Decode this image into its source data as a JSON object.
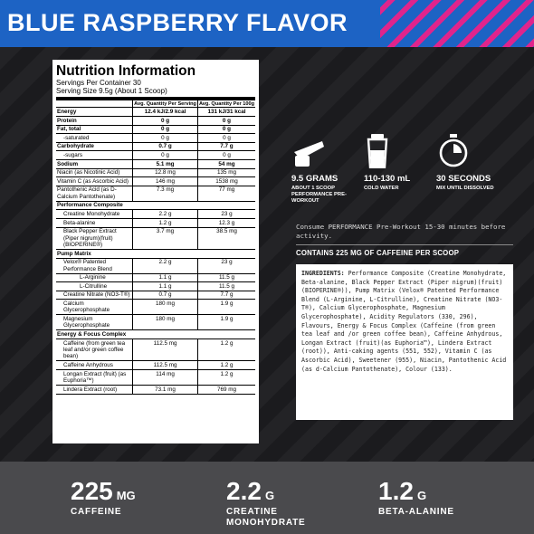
{
  "header": {
    "title": "BLUE RASPBERRY FLAVOR"
  },
  "nutrition": {
    "title": "Nutrition Information",
    "servings_per_container": "Servings Per Container 30",
    "serving_size": "Serving Size 9.5g (About 1 Scoop)",
    "col_serving": "Avg. Quantity Per Serving",
    "col_100g": "Avg. Quantity Per 100g",
    "rows": [
      {
        "name": "Energy",
        "serving": "12.4 kJ/2.9 kcal",
        "per100": "131 kJ/31 kcal",
        "style": "b"
      },
      {
        "name": "Protein",
        "serving": "0 g",
        "per100": "0 g",
        "style": "b"
      },
      {
        "name": "Fat, total",
        "serving": "0 g",
        "per100": "0 g",
        "style": "b"
      },
      {
        "name": "-saturated",
        "serving": "0 g",
        "per100": "0 g",
        "style": "ind1"
      },
      {
        "name": "Carbohydrate",
        "serving": "0.7 g",
        "per100": "7.7 g",
        "style": "b"
      },
      {
        "name": "-sugars",
        "serving": "0 g",
        "per100": "0 g",
        "style": "ind1"
      },
      {
        "name": "Sodium",
        "serving": "5.1 mg",
        "per100": "54 mg",
        "style": "b"
      },
      {
        "name": "Niacin (as Nicotinic Acid)",
        "serving": "12.8 mg",
        "per100": "135 mg",
        "style": ""
      },
      {
        "name": "Vitamin C (as Ascorbic Acid)",
        "serving": "146 mg",
        "per100": "1538 mg",
        "style": ""
      },
      {
        "name": "Pantothenic Acid (as D-Calcium Pantothenate)",
        "serving": "7.3 mg",
        "per100": "77 mg",
        "style": ""
      },
      {
        "name": "Performance Composite",
        "serving": "",
        "per100": "",
        "style": "sec"
      },
      {
        "name": "Creatine Monohydrate",
        "serving": "2.2 g",
        "per100": "23 g",
        "style": "ind1"
      },
      {
        "name": "Beta-alanine",
        "serving": "1.2 g",
        "per100": "12.3 g",
        "style": "ind1"
      },
      {
        "name": "Black Pepper Extract (Piper nigrum)(fruit)(BIOPERINE®)",
        "serving": "3.7 mg",
        "per100": "38.5 mg",
        "style": "ind1"
      },
      {
        "name": "Pump Matrix",
        "serving": "",
        "per100": "",
        "style": "sec"
      },
      {
        "name": "Velox® Patented Performance Blend",
        "serving": "2.2 g",
        "per100": "23 g",
        "style": "ind1"
      },
      {
        "name": "L-Arginine",
        "serving": "1.1 g",
        "per100": "11.5 g",
        "style": "ind2"
      },
      {
        "name": "L-Citrulline",
        "serving": "1.1 g",
        "per100": "11.5 g",
        "style": "ind2"
      },
      {
        "name": "Creatine Nitrate (NO3-T®)",
        "serving": "0.7 g",
        "per100": "7.7 g",
        "style": "ind1"
      },
      {
        "name": "Calcium Glycerophosphate",
        "serving": "180 mg",
        "per100": "1.9 g",
        "style": "ind1"
      },
      {
        "name": "Magnesium Glycerophosphate",
        "serving": "180 mg",
        "per100": "1.9 g",
        "style": "ind1"
      },
      {
        "name": "Energy & Focus Complex",
        "serving": "",
        "per100": "",
        "style": "sec"
      },
      {
        "name": "Caffeine (from green tea leaf and/or green coffee bean)",
        "serving": "112.5 mg",
        "per100": "1.2 g",
        "style": "ind1"
      },
      {
        "name": "Caffeine Anhydrous",
        "serving": "112.5 mg",
        "per100": "1.2 g",
        "style": "ind1"
      },
      {
        "name": "Longan Extract (fruit) (as Euphoria™)",
        "serving": "114 mg",
        "per100": "1.2 g",
        "style": "ind1"
      },
      {
        "name": "Lindera Extract (root)",
        "serving": "73.1 mg",
        "per100": "769 mg",
        "style": "ind1"
      }
    ]
  },
  "directions": [
    {
      "icon": "scoop-icon",
      "value": "9.5 GRAMS",
      "sub": "ABOUT 1 SCOOP PERFORMANCE PRE-WORKOUT"
    },
    {
      "icon": "shaker-icon",
      "value": "110-130 mL",
      "sub": "COLD WATER"
    },
    {
      "icon": "timer-icon",
      "value": "30 SECONDS",
      "sub": "MIX UNTIL DISSOLVED"
    }
  ],
  "consume": "Consume PERFORMANCE Pre-Workout 15-30 minutes before activity.",
  "caffeine_note": "CONTAINS 225 MG OF CAFFEINE PER SCOOP",
  "ingredients": {
    "label": "INGREDIENTS:",
    "text": " Performance Composite (Creatine Monohydrate, Beta-alanine, Black Pepper Extract (Piper nigrum)(fruit)(BIOPERINE®)), Pump Matrix (Velox® Patented Performance Blend (L-Arginine, L-Citrulline), Creatine Nitrate (NO3-T®), Calcium Glycerophosphate, Magnesium Glycerophosphate), Acidity Regulators (330, 296), Flavours, Energy & Focus Complex (Caffeine (from green tea leaf and /or green coffee bean), Caffeine Anhydrous, Longan Extract (fruit)(as Euphoria™), Lindera Extract (root)), Anti-caking agents (551, 552), Vitamin C (as Ascorbic Acid), Sweetener (955), Niacin, Pantothenic Acid (as d-Calcium Pantothenate), Colour (133)."
  },
  "stats": [
    {
      "num": "225",
      "unit": "MG",
      "label": "CAFFEINE"
    },
    {
      "num": "2.2",
      "unit": "G",
      "label": "CREATINE MONOHYDRATE"
    },
    {
      "num": "1.2",
      "unit": "G",
      "label": "BETA-ALANINE"
    }
  ]
}
